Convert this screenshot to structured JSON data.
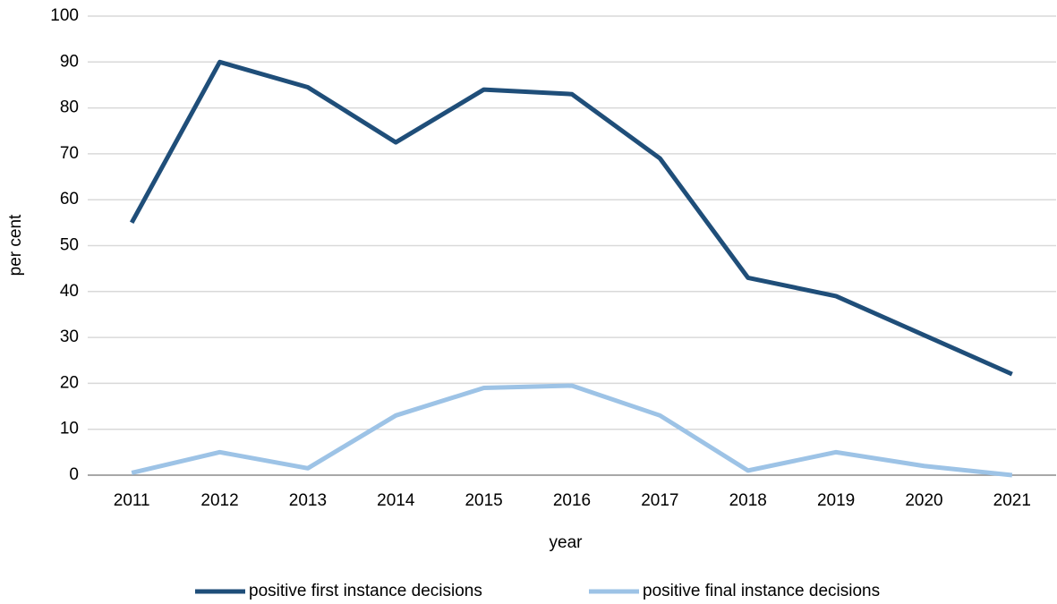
{
  "chart_data": {
    "type": "line",
    "x_label": "year",
    "y_label": "per cent",
    "categories": [
      "2011",
      "2012",
      "2013",
      "2014",
      "2015",
      "2016",
      "2017",
      "2018",
      "2019",
      "2020",
      "2021"
    ],
    "series": [
      {
        "name": "positive first instance decisions",
        "color": "#1f4e79",
        "values": [
          55,
          90,
          84.5,
          72.5,
          84,
          83,
          69,
          43,
          39,
          30.5,
          22
        ]
      },
      {
        "name": "positive final instance decisions",
        "color": "#9dc3e6",
        "values": [
          0.5,
          5,
          1.5,
          13,
          19,
          19.5,
          13,
          1,
          5,
          2,
          0
        ]
      }
    ],
    "ylim": [
      0,
      100
    ],
    "yticks": [
      0,
      10,
      20,
      30,
      40,
      50,
      60,
      70,
      80,
      90,
      100
    ],
    "grid": true,
    "legend": "bottom"
  }
}
